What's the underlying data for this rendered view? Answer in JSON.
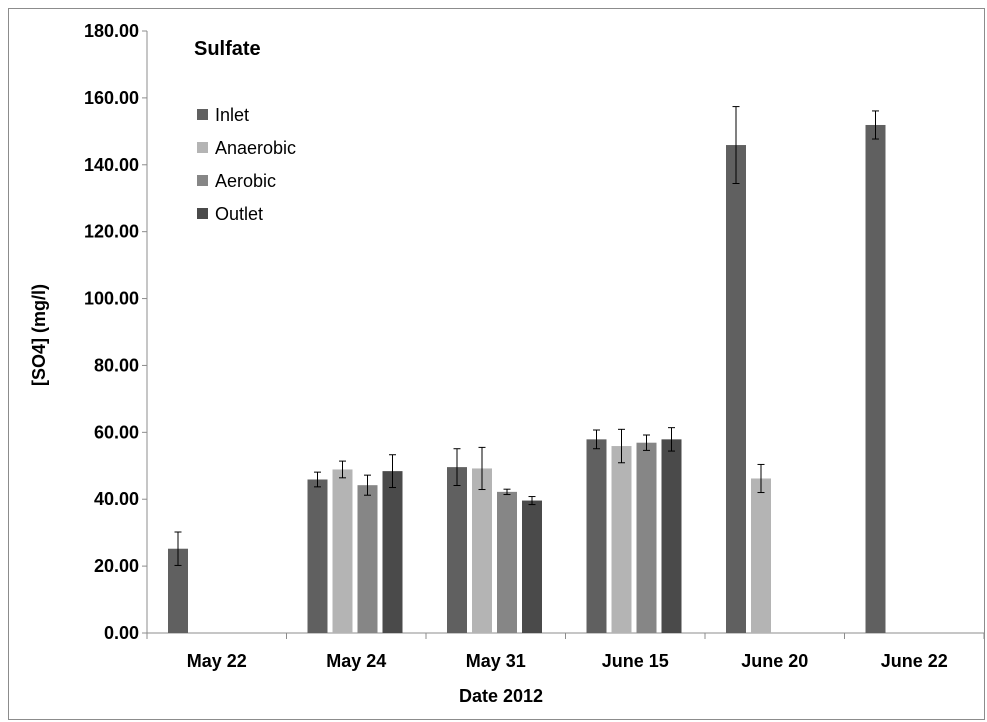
{
  "chart_data": {
    "type": "bar",
    "title": "Sulfate",
    "xlabel": "Date 2012",
    "ylabel": "[SO4] (mg/l)",
    "ylim": [
      0,
      180
    ],
    "yticks": [
      "0.00",
      "20.00",
      "40.00",
      "60.00",
      "80.00",
      "100.00",
      "120.00",
      "140.00",
      "160.00",
      "180.00"
    ],
    "grid": false,
    "legend_position": "top-left",
    "categories": [
      "May 22",
      "May 24",
      "May 31",
      "June 15",
      "June 20",
      "June 22"
    ],
    "series": [
      {
        "name": "Inlet",
        "color": "#606060",
        "values": [
          25.2,
          45.9,
          49.6,
          57.9,
          145.9,
          151.9
        ],
        "errors": [
          5.0,
          2.2,
          5.5,
          2.8,
          11.5,
          4.2
        ]
      },
      {
        "name": "Anaerobic",
        "color": "#b4b4b4",
        "values": [
          null,
          48.9,
          49.2,
          55.9,
          46.2,
          null
        ],
        "errors": [
          null,
          2.5,
          6.3,
          5.0,
          4.2,
          null
        ]
      },
      {
        "name": "Aerobic",
        "color": "#868686",
        "values": [
          null,
          44.2,
          42.2,
          56.9,
          null,
          null
        ],
        "errors": [
          null,
          3.0,
          0.8,
          2.3,
          null,
          null
        ]
      },
      {
        "name": "Outlet",
        "color": "#4a4a4a",
        "values": [
          null,
          48.4,
          39.6,
          57.9,
          null,
          null
        ],
        "errors": [
          null,
          4.9,
          1.2,
          3.5,
          null,
          null
        ]
      }
    ]
  }
}
